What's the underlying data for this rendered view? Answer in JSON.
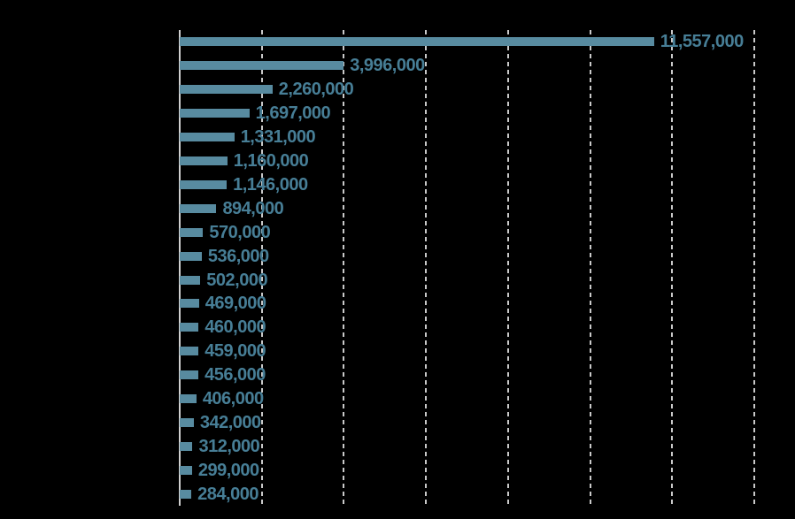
{
  "chart_data": {
    "type": "bar",
    "orientation": "horizontal",
    "title": "",
    "xlabel": "",
    "ylabel": "",
    "values": [
      11557000,
      3996000,
      2260000,
      1697000,
      1331000,
      1160000,
      1146000,
      894000,
      570000,
      536000,
      502000,
      469000,
      460000,
      459000,
      456000,
      406000,
      342000,
      312000,
      299000,
      284000
    ],
    "data_labels": [
      "11,557,000",
      "3,996,000",
      "2,260,000",
      "1,697,000",
      "1,331,000",
      "1,160,000",
      "1,146,000",
      "894,000",
      "570,000",
      "536,000",
      "502,000",
      "469,000",
      "460,000",
      "459,000",
      "456,000",
      "406,000",
      "342,000",
      "312,000",
      "299,000",
      "284,000"
    ],
    "xlim": [
      0,
      14000000
    ],
    "gridline_interval": 2000000,
    "grid": "vertical-dashed",
    "legend": "none",
    "colors": {
      "background": "#000000",
      "bar": "#588ba0",
      "data_label": "#477e96",
      "gridline": "#c9c9c9",
      "axis_line": "#cfcfcf"
    }
  }
}
